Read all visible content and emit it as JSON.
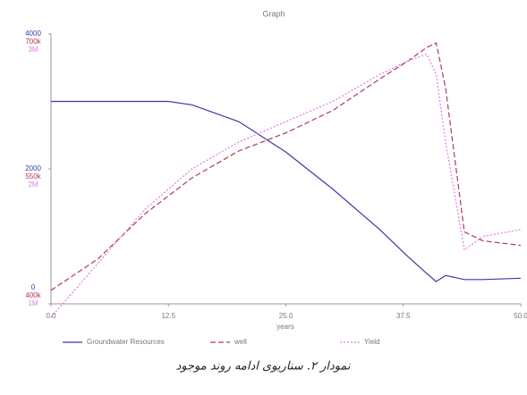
{
  "chart_data": {
    "type": "line",
    "title": "Graph",
    "xlabel": "years",
    "x": [
      0,
      5,
      10,
      12.5,
      15,
      20,
      25,
      30,
      35,
      38,
      40,
      41,
      42,
      44,
      46,
      50
    ],
    "xlim": [
      0,
      50
    ],
    "xticks": [
      {
        "value": 0,
        "label": "0.0"
      },
      {
        "value": 12.5,
        "label": "12.5"
      },
      {
        "value": 25,
        "label": "25.0"
      },
      {
        "value": 37.5,
        "label": "37.5"
      },
      {
        "value": 50,
        "label": "50.0"
      }
    ],
    "ylim": [
      0,
      4000
    ],
    "yticks": [
      0,
      2000,
      4000
    ],
    "y2lim": [
      400000,
      700000
    ],
    "y2ticks": [
      {
        "value": 400000,
        "label": "400k"
      },
      {
        "value": 550000,
        "label": "550k"
      },
      {
        "value": 700000,
        "label": "700k"
      }
    ],
    "y3lim": [
      1000000,
      3000000
    ],
    "y3ticks": [
      {
        "value": 1000000,
        "label": "1M"
      },
      {
        "value": 2000000,
        "label": "2M"
      },
      {
        "value": 3000000,
        "label": "3M"
      }
    ],
    "series": [
      {
        "name": "Groundwater Resources",
        "color": "#3a3aa8",
        "dash": "solid",
        "values": [
          3000,
          3000,
          3000,
          3000,
          2950,
          2700,
          2250,
          1700,
          1100,
          700,
          450,
          330,
          420,
          360,
          360,
          380
        ]
      },
      {
        "name": "well",
        "color": "#b03a5a",
        "dash": "dashed",
        "axis": "y2",
        "values": [
          415000,
          450000,
          500000,
          520000,
          540000,
          570000,
          590000,
          615000,
          650000,
          670000,
          685000,
          690000,
          640000,
          480000,
          470000,
          465000
        ]
      },
      {
        "name": "Yield",
        "color": "#e07ae0",
        "dash": "dotted",
        "axis": "y3",
        "values": [
          900000,
          1300000,
          1700000,
          1850000,
          2000000,
          2200000,
          2350000,
          2500000,
          2700000,
          2800000,
          2850000,
          2700000,
          2200000,
          1400000,
          1500000,
          1550000
        ]
      }
    ],
    "caption": "نمودار ۲. سناریوی ادامه روند موجود"
  }
}
